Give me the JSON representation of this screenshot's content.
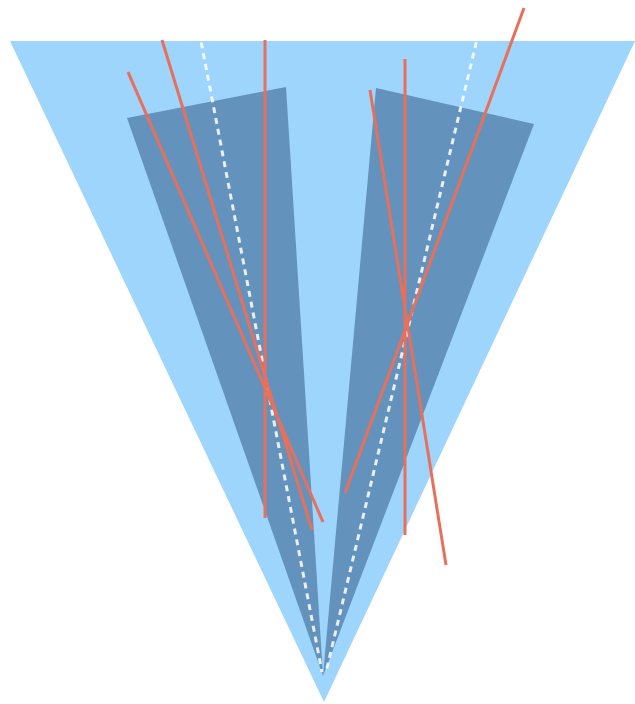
{
  "diagram": {
    "colors": {
      "background": "#ffffff",
      "outer_cone": "#9dd5fc",
      "inner_wedges": "#6392bd",
      "red_lines": "#e8705a",
      "dashed_axes": "#ffffff"
    },
    "elements": {
      "outer_cone": "triangle",
      "inner_wedges": [
        "left-wedge",
        "right-wedge"
      ],
      "dashed_axes": [
        "left-dashed-axis",
        "right-dashed-axis"
      ],
      "red_lines": [
        "red-line-left-vertical",
        "red-line-left-diagonal-steep",
        "red-line-left-diagonal-shallow",
        "red-line-right-vertical",
        "red-line-right-diagonal-a",
        "red-line-right-diagonal-b"
      ]
    }
  }
}
